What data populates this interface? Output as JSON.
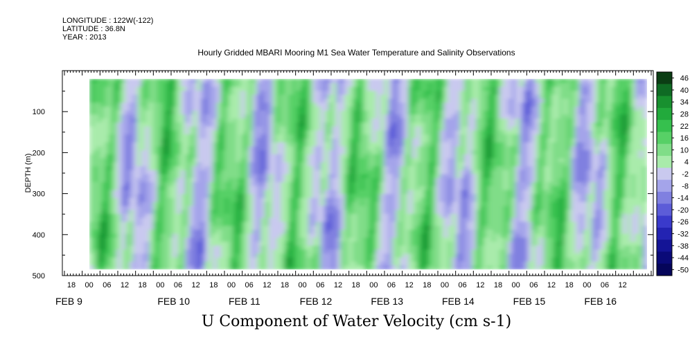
{
  "header": {
    "longitude": "LONGITUDE : 122W(-122)",
    "latitude": "LATITUDE : 36.8N",
    "year": "YEAR : 2013"
  },
  "chart_data": {
    "type": "heatmap",
    "title": "Hourly Gridded MBARI Mooring M1 Sea Water Temperature and Salinity Observations",
    "bottom_title": "U Component of Water Velocity (cm s-1)",
    "ylabel": "DEPTH (m)",
    "y_ticks": [
      "100",
      "200",
      "300",
      "400",
      "500"
    ],
    "ylim": [
      0,
      500
    ],
    "data_depth_range": [
      20,
      485
    ],
    "x_hour_labels": [
      "18",
      "00",
      "06",
      "12",
      "18",
      "00",
      "06",
      "12",
      "18",
      "00",
      "06",
      "12",
      "18",
      "00",
      "06",
      "12",
      "18",
      "00",
      "06",
      "12",
      "18",
      "00",
      "06",
      "12",
      "18",
      "00",
      "06",
      "12",
      "18",
      "00",
      "06",
      "12"
    ],
    "x_day_labels": [
      "FEB  9",
      "FEB 10",
      "FEB 11",
      "FEB 12",
      "FEB 13",
      "FEB 14",
      "FEB 15",
      "FEB 16"
    ],
    "colorbar": {
      "labels": [
        "46",
        "40",
        "34",
        "28",
        "22",
        "16",
        "10",
        "4",
        "-2",
        "-8",
        "-14",
        "-20",
        "-26",
        "-32",
        "-38",
        "-44",
        "-50"
      ],
      "colors_top_to_bottom": [
        "#0b3d14",
        "#0f6b24",
        "#18902f",
        "#22aa3c",
        "#36c04e",
        "#57d066",
        "#80dd88",
        "#a9ebab",
        "#c9c9ef",
        "#a4a4ea",
        "#8080e0",
        "#5c5cd8",
        "#3a3acb",
        "#2323b2",
        "#141496",
        "#0a0a78",
        "#05055a"
      ]
    },
    "note": "Field values vary roughly between -26 and +22 cm/s; alternating vertical bands of green (eastward) and blue (westward) flow."
  }
}
